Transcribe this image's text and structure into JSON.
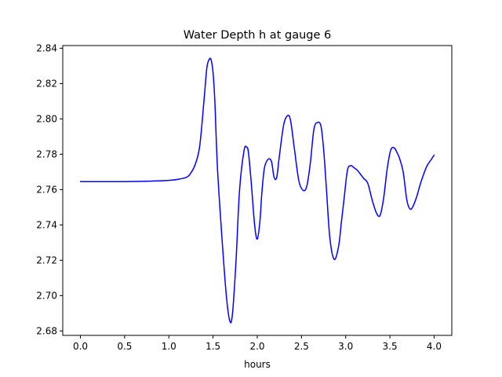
{
  "chart_data": {
    "type": "line",
    "title": "Water Depth h at gauge 6",
    "xlabel": "hours",
    "ylabel": "",
    "xlim": [
      -0.2,
      4.2
    ],
    "ylim": [
      2.6775,
      2.8415
    ],
    "grid": false,
    "legend": "none",
    "x_ticks": [
      0.0,
      0.5,
      1.0,
      1.5,
      2.0,
      2.5,
      3.0,
      3.5,
      4.0
    ],
    "x_tick_labels": [
      "0.0",
      "0.5",
      "1.0",
      "1.5",
      "2.0",
      "2.5",
      "3.0",
      "3.5",
      "4.0"
    ],
    "y_ticks": [
      2.68,
      2.7,
      2.72,
      2.74,
      2.76,
      2.78,
      2.8,
      2.82,
      2.84
    ],
    "y_tick_labels": [
      "2.68",
      "2.70",
      "2.72",
      "2.74",
      "2.76",
      "2.78",
      "2.80",
      "2.82",
      "2.84"
    ],
    "series": [
      {
        "color": "#0000ff",
        "x": [
          0.0,
          0.5,
          0.8,
          1.0,
          1.1,
          1.2,
          1.25,
          1.3,
          1.35,
          1.4,
          1.43,
          1.46,
          1.48,
          1.5,
          1.52,
          1.55,
          1.6,
          1.65,
          1.69,
          1.72,
          1.76,
          1.8,
          1.85,
          1.88,
          1.9,
          1.93,
          1.97,
          2.0,
          2.03,
          2.05,
          2.08,
          2.12,
          2.16,
          2.19,
          2.22,
          2.25,
          2.3,
          2.35,
          2.38,
          2.42,
          2.47,
          2.52,
          2.56,
          2.6,
          2.64,
          2.68,
          2.72,
          2.75,
          2.78,
          2.82,
          2.87,
          2.92,
          2.95,
          2.98,
          3.02,
          3.06,
          3.09,
          3.13,
          3.17,
          3.2,
          3.25,
          3.3,
          3.35,
          3.39,
          3.43,
          3.47,
          3.51,
          3.55,
          3.58,
          3.61,
          3.65,
          3.69,
          3.72,
          3.75,
          3.8,
          3.84,
          3.88,
          3.92,
          3.96,
          4.0
        ],
        "values": [
          2.7645,
          2.7645,
          2.7648,
          2.7652,
          2.7658,
          2.767,
          2.7695,
          2.7745,
          2.785,
          2.812,
          2.829,
          2.834,
          2.833,
          2.826,
          2.81,
          2.772,
          2.733,
          2.7,
          2.6855,
          2.69,
          2.72,
          2.76,
          2.782,
          2.784,
          2.781,
          2.765,
          2.74,
          2.732,
          2.742,
          2.757,
          2.772,
          2.777,
          2.776,
          2.767,
          2.767,
          2.779,
          2.797,
          2.802,
          2.798,
          2.783,
          2.765,
          2.7595,
          2.762,
          2.775,
          2.794,
          2.798,
          2.796,
          2.783,
          2.762,
          2.733,
          2.7205,
          2.728,
          2.741,
          2.754,
          2.771,
          2.7735,
          2.7725,
          2.771,
          2.7685,
          2.7665,
          2.7635,
          2.754,
          2.7465,
          2.7455,
          2.7555,
          2.772,
          2.7825,
          2.7835,
          2.781,
          2.7775,
          2.77,
          2.7545,
          2.7495,
          2.7495,
          2.7555,
          2.7625,
          2.7685,
          2.7735,
          2.7765,
          2.7795
        ]
      }
    ]
  }
}
